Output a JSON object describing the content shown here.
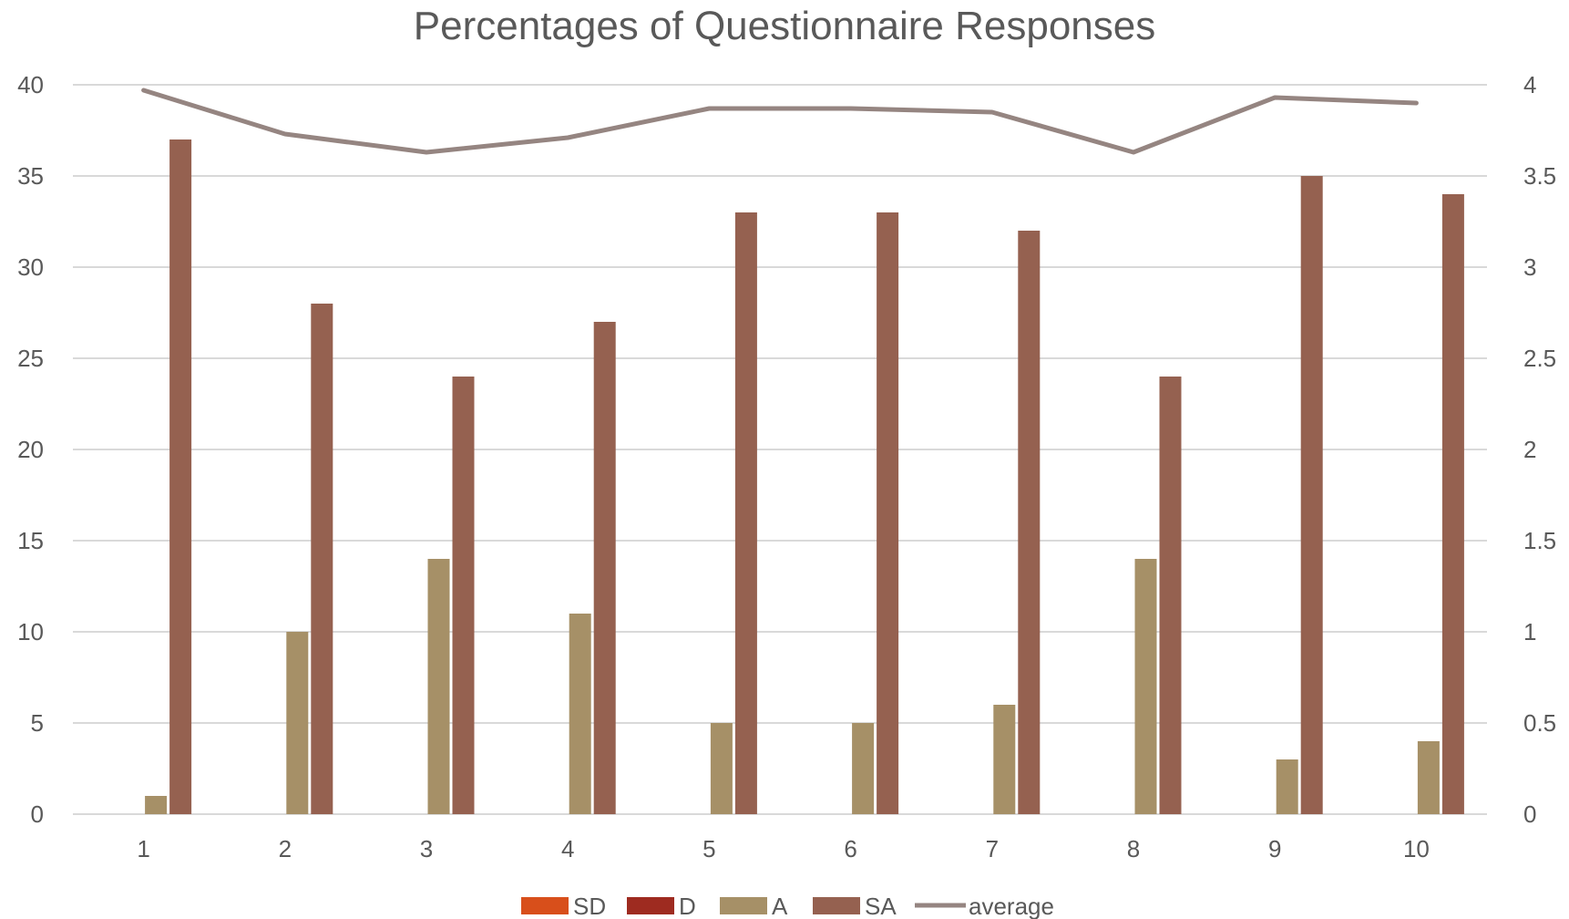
{
  "chart_data": {
    "type": "bar",
    "title": "Percentages of Questionnaire Responses",
    "categories": [
      "1",
      "2",
      "3",
      "4",
      "5",
      "6",
      "7",
      "8",
      "9",
      "10"
    ],
    "series": [
      {
        "name": "SD",
        "type": "bar",
        "axis": "left",
        "color": "#d84f1b",
        "values": [
          0,
          0,
          0,
          0,
          0,
          0,
          0,
          0,
          0,
          0
        ]
      },
      {
        "name": "D",
        "type": "bar",
        "axis": "left",
        "color": "#9e2b20",
        "values": [
          0,
          0,
          0,
          0,
          0,
          0,
          0,
          0,
          0,
          0
        ]
      },
      {
        "name": "A",
        "type": "bar",
        "axis": "left",
        "color": "#a69067",
        "values": [
          1,
          10,
          14,
          11,
          5,
          5,
          6,
          14,
          3,
          4
        ]
      },
      {
        "name": "SA",
        "type": "bar",
        "axis": "left",
        "color": "#956150",
        "values": [
          37,
          28,
          24,
          27,
          33,
          33,
          32,
          24,
          35,
          34
        ]
      },
      {
        "name": "average",
        "type": "line",
        "axis": "right",
        "color": "#958581",
        "values": [
          3.97,
          3.73,
          3.63,
          3.71,
          3.87,
          3.87,
          3.85,
          3.63,
          3.93,
          3.9
        ]
      }
    ],
    "y_left": {
      "ylim": [
        0,
        40
      ],
      "ticks": [
        "0",
        "5",
        "10",
        "15",
        "20",
        "25",
        "30",
        "35",
        "40"
      ]
    },
    "y_right": {
      "ylim": [
        0,
        4
      ],
      "ticks": [
        "0",
        "0.5",
        "1",
        "1.5",
        "2",
        "2.5",
        "3",
        "3.5",
        "4"
      ]
    },
    "xlabel": "",
    "ylabel": "",
    "grid": true,
    "legend_position": "bottom"
  }
}
